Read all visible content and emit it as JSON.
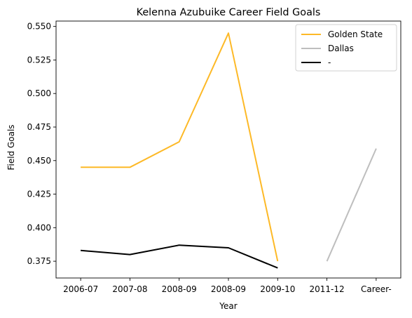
{
  "chart_data": {
    "type": "line",
    "title": "Kelenna Azubuike Career Field Goals",
    "xlabel": "Year",
    "ylabel": "Field Goals",
    "categories": [
      "2006-07",
      "2007-08",
      "2008-09",
      "2008-09",
      "2009-10",
      "2011-12",
      "Career-"
    ],
    "ylim": [
      0.3625,
      0.554
    ],
    "yticks": [
      0.375,
      0.4,
      0.425,
      0.45,
      0.475,
      0.5,
      0.525,
      0.55
    ],
    "ytick_labels": [
      "0.375",
      "0.400",
      "0.425",
      "0.450",
      "0.475",
      "0.500",
      "0.525",
      "0.550"
    ],
    "grid": false,
    "legend_position": "top-right",
    "series": [
      {
        "name": "Golden State",
        "color": "#FDB927",
        "values": [
          0.445,
          0.445,
          0.464,
          0.545,
          0.375,
          null,
          null
        ]
      },
      {
        "name": "Dallas",
        "color": "#BEBEBE",
        "values": [
          null,
          null,
          null,
          null,
          null,
          0.375,
          0.459
        ]
      },
      {
        "name": "-",
        "color": "#000000",
        "values": [
          0.383,
          0.38,
          0.387,
          0.385,
          0.37,
          null,
          null
        ]
      }
    ]
  }
}
